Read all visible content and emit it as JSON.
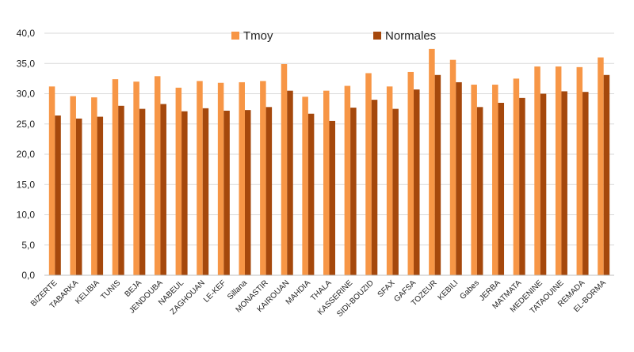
{
  "chart_data": {
    "type": "bar",
    "title": "",
    "xlabel": "",
    "ylabel": "",
    "ylim": [
      0,
      40
    ],
    "yticks": [
      0,
      5,
      10,
      15,
      20,
      25,
      30,
      35,
      40
    ],
    "ytick_labels": [
      "0,0",
      "5,0",
      "10,0",
      "15,0",
      "20,0",
      "25,0",
      "30,0",
      "35,0",
      "40,0"
    ],
    "grid": true,
    "legend_position": "top",
    "categories": [
      "BIZERTE",
      "TABARKA",
      "KELIBIA",
      "TUNIS",
      "BEJA",
      "JENDOUBA",
      "NABEUL",
      "ZAGHOUAN",
      "LE-KEF",
      "Sillana",
      "MONASTIR",
      "KAIROUAN",
      "MAHDIA",
      "THALA",
      "KASSERINE",
      "SIDI-BOUZID",
      "SFAX",
      "GAFSA",
      "TOZEUR",
      "KEBILI",
      "Gabes",
      "JERBA",
      "MATMATA",
      "MEDENINE",
      "TATAOUINE",
      "REMADA",
      "EL-BORMA"
    ],
    "series": [
      {
        "name": "Tmoy",
        "color": "#F79646",
        "values": [
          31.2,
          29.6,
          29.4,
          32.4,
          32.0,
          32.9,
          31.0,
          32.1,
          31.8,
          31.9,
          32.1,
          34.9,
          29.5,
          30.5,
          31.3,
          33.4,
          31.2,
          33.6,
          37.4,
          35.6,
          31.5,
          31.5,
          32.5,
          34.5,
          34.5,
          34.4,
          36.0
        ]
      },
      {
        "name": "Normales",
        "color": "#A5480C",
        "values": [
          26.4,
          25.9,
          26.2,
          28.0,
          27.5,
          28.3,
          27.1,
          27.6,
          27.2,
          27.3,
          27.8,
          30.5,
          26.7,
          25.5,
          27.7,
          29.0,
          27.5,
          30.7,
          33.1,
          31.9,
          27.8,
          28.5,
          29.3,
          30.0,
          30.4,
          30.3,
          33.1
        ]
      }
    ]
  }
}
